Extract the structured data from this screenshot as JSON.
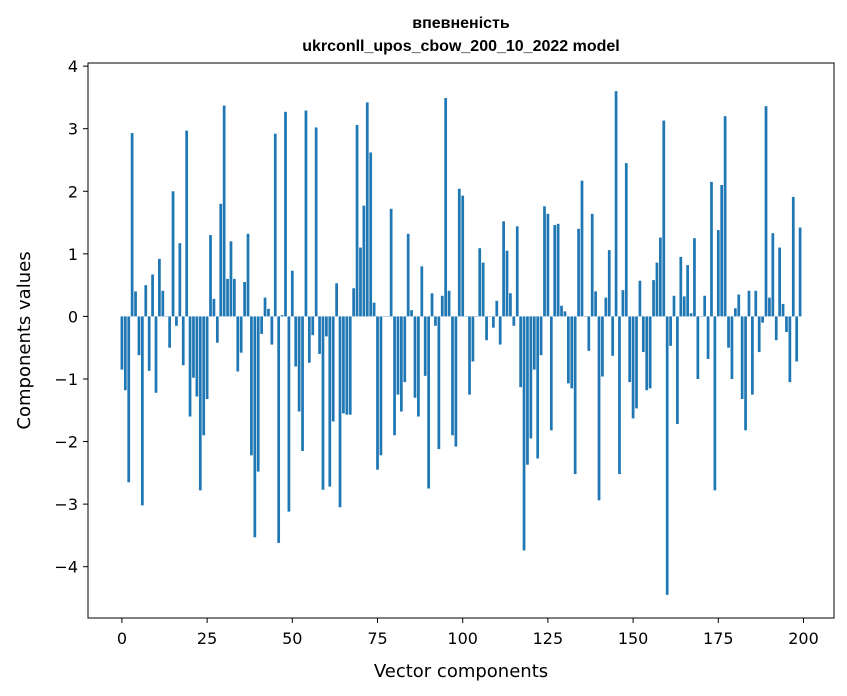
{
  "chart_data": {
    "type": "bar",
    "title": "впевненість",
    "subtitle": "ukrconll_upos_cbow_200_10_2022 model",
    "xlabel": "Vector components",
    "ylabel": "Components values",
    "xlim": [
      -9.95,
      208.95
    ],
    "ylim": [
      -4.82,
      4.05
    ],
    "xticks": [
      0,
      25,
      50,
      75,
      100,
      125,
      150,
      175,
      200
    ],
    "yticks": [
      4,
      3,
      2,
      1,
      0,
      -1,
      -2,
      -3,
      -4
    ],
    "ytick_labels": [
      "4",
      "3",
      "2",
      "1",
      "0",
      "−1",
      "−2",
      "−3",
      "−4"
    ],
    "grid": false,
    "legend": "none",
    "bar_color": "#1f77b4",
    "bar_width": 0.8,
    "x": [
      0,
      1,
      2,
      3,
      4,
      5,
      6,
      7,
      8,
      9,
      10,
      11,
      12,
      13,
      14,
      15,
      16,
      17,
      18,
      19,
      20,
      21,
      22,
      23,
      24,
      25,
      26,
      27,
      28,
      29,
      30,
      31,
      32,
      33,
      34,
      35,
      36,
      37,
      38,
      39,
      40,
      41,
      42,
      43,
      44,
      45,
      46,
      47,
      48,
      49,
      50,
      51,
      52,
      53,
      54,
      55,
      56,
      57,
      58,
      59,
      60,
      61,
      62,
      63,
      64,
      65,
      66,
      67,
      68,
      69,
      70,
      71,
      72,
      73,
      74,
      75,
      76,
      77,
      78,
      79,
      80,
      81,
      82,
      83,
      84,
      85,
      86,
      87,
      88,
      89,
      90,
      91,
      92,
      93,
      94,
      95,
      96,
      97,
      98,
      99,
      100,
      101,
      102,
      103,
      104,
      105,
      106,
      107,
      108,
      109,
      110,
      111,
      112,
      113,
      114,
      115,
      116,
      117,
      118,
      119,
      120,
      121,
      122,
      123,
      124,
      125,
      126,
      127,
      128,
      129,
      130,
      131,
      132,
      133,
      134,
      135,
      136,
      137,
      138,
      139,
      140,
      141,
      142,
      143,
      144,
      145,
      146,
      147,
      148,
      149,
      150,
      151,
      152,
      153,
      154,
      155,
      156,
      157,
      158,
      159,
      160,
      161,
      162,
      163,
      164,
      165,
      166,
      167,
      168,
      169,
      170,
      171,
      172,
      173,
      174,
      175,
      176,
      177,
      178,
      179,
      180,
      181,
      182,
      183,
      184,
      185,
      186,
      187,
      188,
      189,
      190,
      191,
      192,
      193,
      194,
      195,
      196,
      197,
      198,
      199
    ],
    "values": [
      -0.85,
      -1.18,
      -2.65,
      2.93,
      0.4,
      -0.62,
      -3.02,
      0.5,
      -0.87,
      0.67,
      -1.22,
      0.92,
      0.41,
      0.0,
      -0.5,
      2.0,
      -0.15,
      1.17,
      -0.78,
      2.97,
      -1.6,
      -0.98,
      -1.28,
      -2.78,
      -1.9,
      -1.32,
      1.3,
      0.28,
      -0.42,
      1.8,
      3.37,
      0.6,
      1.2,
      0.6,
      -0.88,
      -0.58,
      0.55,
      1.32,
      -2.22,
      -3.53,
      -2.48,
      -0.28,
      0.3,
      0.12,
      -0.45,
      2.92,
      -3.62,
      0.02,
      3.27,
      -3.12,
      0.73,
      -0.8,
      -1.52,
      -2.15,
      3.29,
      -0.74,
      -0.3,
      3.02,
      -0.6,
      -2.77,
      -0.32,
      -2.72,
      -1.68,
      0.53,
      -3.05,
      -1.55,
      -1.57,
      -1.57,
      0.45,
      3.06,
      1.1,
      1.77,
      3.42,
      2.62,
      0.22,
      -2.45,
      -2.22,
      0.0,
      0.0,
      1.72,
      -1.9,
      -1.25,
      -1.52,
      -1.05,
      1.32,
      0.1,
      -1.3,
      -1.6,
      0.8,
      -0.95,
      -2.75,
      0.37,
      -0.15,
      -2.12,
      0.33,
      3.49,
      0.41,
      -1.9,
      -2.08,
      2.04,
      1.93,
      0.0,
      -1.25,
      -0.72,
      0.0,
      1.09,
      0.86,
      -0.38,
      0.0,
      -0.18,
      0.25,
      -0.45,
      1.52,
      1.05,
      0.37,
      -0.15,
      1.44,
      -1.13,
      -3.74,
      -2.37,
      -1.95,
      -0.85,
      -2.27,
      -0.62,
      1.76,
      1.64,
      -1.82,
      1.46,
      1.48,
      0.17,
      0.08,
      -1.07,
      -1.15,
      -2.52,
      1.4,
      2.17,
      0.0,
      -0.55,
      1.64,
      0.4,
      -2.94,
      -0.96,
      0.3,
      1.06,
      -0.63,
      3.6,
      -2.52,
      0.42,
      2.45,
      -1.05,
      -1.63,
      -1.47,
      0.57,
      -0.57,
      -1.18,
      -1.15,
      0.58,
      0.86,
      1.26,
      3.13,
      -4.45,
      -0.47,
      0.33,
      -1.72,
      0.95,
      0.32,
      0.82,
      0.05,
      1.25,
      -1.0,
      0.0,
      0.33,
      -0.68,
      2.15,
      -2.78,
      1.38,
      2.1,
      3.2,
      -0.5,
      -1.0,
      0.13,
      0.35,
      -1.32,
      -1.82,
      0.41,
      -1.25,
      0.41,
      -0.57,
      -0.1,
      3.36,
      0.3,
      1.33,
      -0.38,
      1.1,
      0.2,
      -0.25,
      -1.05,
      1.91,
      -0.72,
      1.42
    ]
  }
}
